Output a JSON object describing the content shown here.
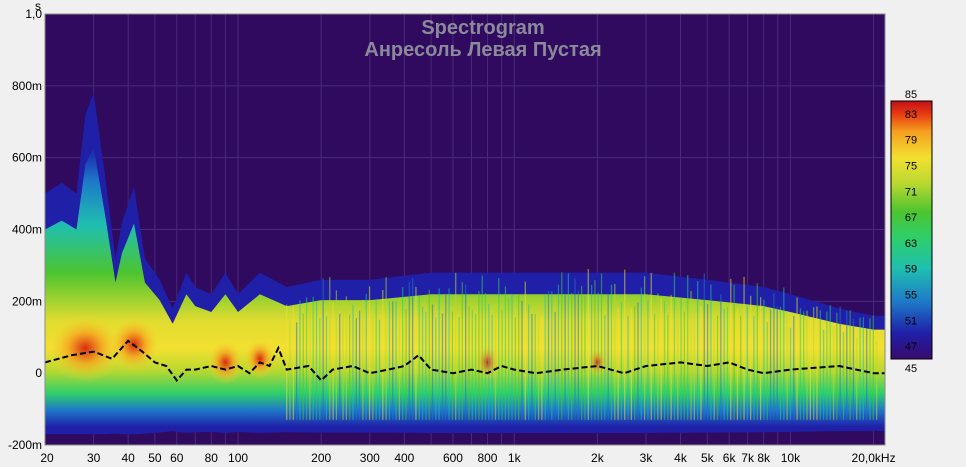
{
  "chart_data": {
    "type": "heatmap",
    "title": "Spectrogram",
    "subtitle": "Анресоль Левая Пустая",
    "xlabel": "",
    "ylabel": "s",
    "x_scale": "log",
    "xlim": [
      20,
      22000
    ],
    "ylim": [
      -0.2,
      1.0
    ],
    "x_ticks": [
      {
        "value": 20,
        "label": "20"
      },
      {
        "value": 30,
        "label": "30"
      },
      {
        "value": 40,
        "label": "40"
      },
      {
        "value": 50,
        "label": "50"
      },
      {
        "value": 60,
        "label": "60"
      },
      {
        "value": 80,
        "label": "80"
      },
      {
        "value": 100,
        "label": "100"
      },
      {
        "value": 200,
        "label": "200"
      },
      {
        "value": 300,
        "label": "300"
      },
      {
        "value": 400,
        "label": "400"
      },
      {
        "value": 600,
        "label": "600"
      },
      {
        "value": 800,
        "label": "800"
      },
      {
        "value": 1000,
        "label": "1k"
      },
      {
        "value": 2000,
        "label": "2k"
      },
      {
        "value": 3000,
        "label": "3k"
      },
      {
        "value": 4000,
        "label": "4k"
      },
      {
        "value": 5000,
        "label": "5k"
      },
      {
        "value": 6000,
        "label": "6k"
      },
      {
        "value": 7000,
        "label": "7k"
      },
      {
        "value": 8000,
        "label": "8k"
      },
      {
        "value": 10000,
        "label": "10k"
      },
      {
        "value": 20000,
        "label": "20,0kHz"
      }
    ],
    "y_ticks": [
      {
        "value": 1.0,
        "label": "1,0"
      },
      {
        "value": 0.8,
        "label": "800m"
      },
      {
        "value": 0.6,
        "label": "600m"
      },
      {
        "value": 0.4,
        "label": "400m"
      },
      {
        "value": 0.2,
        "label": "200m"
      },
      {
        "value": 0.0,
        "label": "0"
      },
      {
        "value": -0.2,
        "label": "-200m"
      }
    ],
    "colorbar": {
      "min": 45,
      "max": 85,
      "ticks": [
        "85",
        "83",
        "79",
        "75",
        "71",
        "67",
        "63",
        "59",
        "55",
        "51",
        "47",
        "45"
      ],
      "colors": [
        "#3a0a6e",
        "#1f1fa8",
        "#1e78c8",
        "#1fbfb0",
        "#2ecf6a",
        "#4cc430",
        "#b8d830",
        "#f2e030",
        "#f5a020",
        "#e83a10",
        "#c0101a"
      ]
    },
    "background_color": "#2f0a5e",
    "peak_time_line": {
      "style": "dashed",
      "color": "#000000",
      "points": [
        [
          20,
          0.03
        ],
        [
          25,
          0.05
        ],
        [
          30,
          0.06
        ],
        [
          35,
          0.04
        ],
        [
          40,
          0.09
        ],
        [
          45,
          0.06
        ],
        [
          50,
          0.03
        ],
        [
          55,
          0.02
        ],
        [
          60,
          -0.02
        ],
        [
          65,
          0.01
        ],
        [
          70,
          0.01
        ],
        [
          80,
          0.02
        ],
        [
          90,
          0.01
        ],
        [
          100,
          0.02
        ],
        [
          110,
          0.0
        ],
        [
          120,
          0.03
        ],
        [
          130,
          0.02
        ],
        [
          140,
          0.07
        ],
        [
          150,
          0.01
        ],
        [
          180,
          0.02
        ],
        [
          200,
          -0.02
        ],
        [
          220,
          0.01
        ],
        [
          260,
          0.02
        ],
        [
          300,
          0.0
        ],
        [
          350,
          0.01
        ],
        [
          400,
          0.02
        ],
        [
          450,
          0.05
        ],
        [
          500,
          0.01
        ],
        [
          600,
          0.0
        ],
        [
          700,
          0.01
        ],
        [
          800,
          0.0
        ],
        [
          900,
          0.02
        ],
        [
          1000,
          0.01
        ],
        [
          1200,
          0.0
        ],
        [
          1500,
          0.01
        ],
        [
          2000,
          0.02
        ],
        [
          2500,
          0.0
        ],
        [
          3000,
          0.02
        ],
        [
          4000,
          0.03
        ],
        [
          5000,
          0.02
        ],
        [
          6000,
          0.03
        ],
        [
          7000,
          0.01
        ],
        [
          8000,
          0.0
        ],
        [
          10000,
          0.01
        ],
        [
          15000,
          0.02
        ],
        [
          20000,
          0.0
        ],
        [
          22000,
          0.0
        ]
      ]
    },
    "envelope": {
      "description_free": true,
      "points": [
        [
          20,
          0.5
        ],
        [
          23,
          0.53
        ],
        [
          26,
          0.5
        ],
        [
          28,
          0.72
        ],
        [
          30,
          0.78
        ],
        [
          33,
          0.55
        ],
        [
          36,
          0.32
        ],
        [
          38,
          0.42
        ],
        [
          42,
          0.52
        ],
        [
          46,
          0.32
        ],
        [
          52,
          0.26
        ],
        [
          58,
          0.18
        ],
        [
          65,
          0.28
        ],
        [
          70,
          0.24
        ],
        [
          80,
          0.22
        ],
        [
          90,
          0.28
        ],
        [
          100,
          0.22
        ],
        [
          120,
          0.28
        ],
        [
          150,
          0.24
        ],
        [
          200,
          0.26
        ],
        [
          300,
          0.26
        ],
        [
          500,
          0.28
        ],
        [
          800,
          0.28
        ],
        [
          1000,
          0.28
        ],
        [
          2000,
          0.28
        ],
        [
          3000,
          0.28
        ],
        [
          5000,
          0.26
        ],
        [
          8000,
          0.24
        ],
        [
          10000,
          0.22
        ],
        [
          15000,
          0.18
        ],
        [
          20000,
          0.16
        ],
        [
          22000,
          0.16
        ]
      ]
    }
  }
}
